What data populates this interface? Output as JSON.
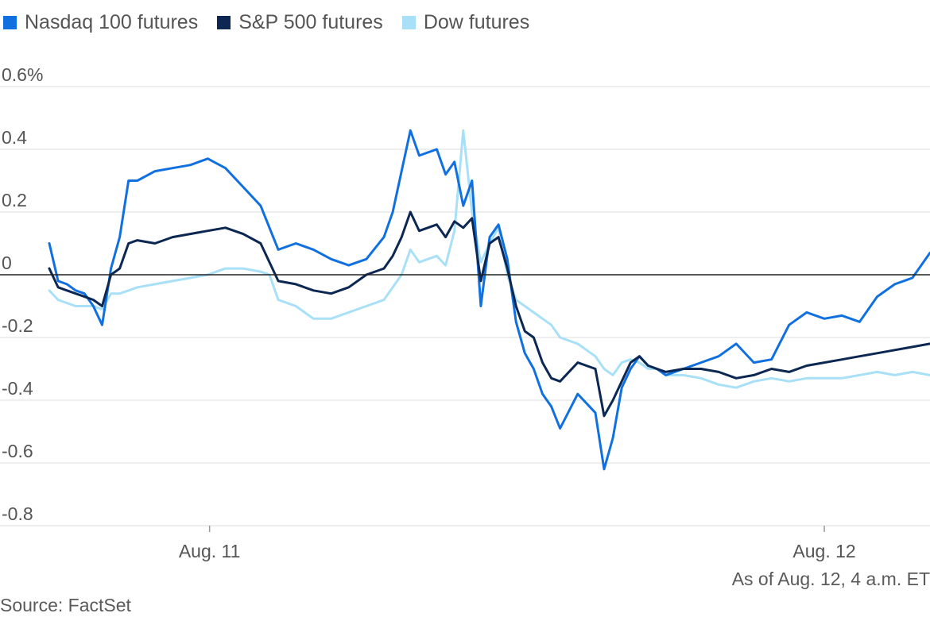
{
  "legend": [
    {
      "label": "Nasdaq 100 futures",
      "color": "#1170e0"
    },
    {
      "label": "S&P 500 futures",
      "color": "#0b2752"
    },
    {
      "label": "Dow futures",
      "color": "#a8e0f7"
    }
  ],
  "note": "As of Aug. 12, 4 a.m. ET",
  "source": "Source: FactSet",
  "chart_data": {
    "type": "line",
    "title": "",
    "xlabel": "",
    "ylabel": "",
    "ylim": [
      -0.8,
      0.6
    ],
    "y_ticks": [
      0.6,
      0.4,
      0.2,
      0,
      -0.2,
      -0.4,
      -0.6,
      -0.8
    ],
    "y_tick_labels": [
      "0.6%",
      "0.4",
      "0.2",
      "0",
      "-0.2",
      "-0.4",
      "-0.6",
      "-0.8"
    ],
    "x_ticks": [
      {
        "x": 0.182,
        "label": "Aug. 11"
      },
      {
        "x": 0.88,
        "label": "Aug. 12"
      }
    ],
    "zero_line": true,
    "grid": true,
    "x": [
      0.0,
      0.01,
      0.02,
      0.03,
      0.04,
      0.05,
      0.06,
      0.07,
      0.08,
      0.09,
      0.1,
      0.12,
      0.14,
      0.16,
      0.18,
      0.2,
      0.22,
      0.24,
      0.25,
      0.26,
      0.28,
      0.3,
      0.32,
      0.34,
      0.36,
      0.38,
      0.39,
      0.4,
      0.41,
      0.42,
      0.44,
      0.45,
      0.46,
      0.47,
      0.48,
      0.49,
      0.5,
      0.51,
      0.52,
      0.53,
      0.54,
      0.55,
      0.56,
      0.57,
      0.58,
      0.6,
      0.62,
      0.63,
      0.64,
      0.65,
      0.66,
      0.67,
      0.68,
      0.69,
      0.7,
      0.72,
      0.74,
      0.76,
      0.78,
      0.8,
      0.82,
      0.84,
      0.86,
      0.88,
      0.9,
      0.92,
      0.94,
      0.96,
      0.98,
      1.0
    ],
    "series": [
      {
        "name": "Nasdaq 100 futures",
        "color": "#1170e0",
        "values": [
          0.1,
          -0.02,
          -0.03,
          -0.05,
          -0.06,
          -0.1,
          -0.16,
          0.02,
          0.12,
          0.3,
          0.3,
          0.33,
          0.34,
          0.35,
          0.37,
          0.34,
          0.28,
          0.22,
          0.15,
          0.08,
          0.1,
          0.08,
          0.05,
          0.03,
          0.05,
          0.12,
          0.2,
          0.33,
          0.46,
          0.38,
          0.4,
          0.32,
          0.36,
          0.22,
          0.3,
          -0.1,
          0.12,
          0.16,
          0.05,
          -0.15,
          -0.25,
          -0.3,
          -0.38,
          -0.42,
          -0.49,
          -0.38,
          -0.44,
          -0.62,
          -0.52,
          -0.36,
          -0.3,
          -0.26,
          -0.29,
          -0.3,
          -0.32,
          -0.3,
          -0.28,
          -0.26,
          -0.22,
          -0.28,
          -0.27,
          -0.16,
          -0.12,
          -0.14,
          -0.13,
          -0.15,
          -0.07,
          -0.03,
          -0.01,
          0.07
        ]
      },
      {
        "name": "S&P 500 futures",
        "color": "#0b2752",
        "values": [
          0.02,
          -0.04,
          -0.05,
          -0.06,
          -0.07,
          -0.08,
          -0.1,
          0.0,
          0.02,
          0.1,
          0.11,
          0.1,
          0.12,
          0.13,
          0.14,
          0.15,
          0.13,
          0.1,
          0.04,
          -0.02,
          -0.03,
          -0.05,
          -0.06,
          -0.04,
          0.0,
          0.02,
          0.06,
          0.12,
          0.2,
          0.14,
          0.16,
          0.12,
          0.17,
          0.15,
          0.18,
          -0.02,
          0.1,
          0.12,
          0.02,
          -0.1,
          -0.18,
          -0.2,
          -0.28,
          -0.33,
          -0.34,
          -0.28,
          -0.3,
          -0.45,
          -0.4,
          -0.34,
          -0.28,
          -0.26,
          -0.29,
          -0.3,
          -0.31,
          -0.3,
          -0.3,
          -0.31,
          -0.33,
          -0.32,
          -0.3,
          -0.31,
          -0.29,
          -0.28,
          -0.27,
          -0.26,
          -0.25,
          -0.24,
          -0.23,
          -0.22
        ]
      },
      {
        "name": "Dow futures",
        "color": "#a8e0f7",
        "values": [
          -0.05,
          -0.08,
          -0.09,
          -0.1,
          -0.1,
          -0.1,
          -0.11,
          -0.06,
          -0.06,
          -0.05,
          -0.04,
          -0.03,
          -0.02,
          -0.01,
          0.0,
          0.02,
          0.02,
          0.01,
          0.0,
          -0.08,
          -0.1,
          -0.14,
          -0.14,
          -0.12,
          -0.1,
          -0.08,
          -0.04,
          0.0,
          0.08,
          0.04,
          0.06,
          0.03,
          0.14,
          0.46,
          0.2,
          0.04,
          0.1,
          0.15,
          0.0,
          -0.08,
          -0.1,
          -0.12,
          -0.14,
          -0.16,
          -0.2,
          -0.22,
          -0.26,
          -0.3,
          -0.32,
          -0.28,
          -0.27,
          -0.28,
          -0.3,
          -0.3,
          -0.32,
          -0.32,
          -0.33,
          -0.35,
          -0.36,
          -0.34,
          -0.33,
          -0.34,
          -0.33,
          -0.33,
          -0.33,
          -0.32,
          -0.31,
          -0.32,
          -0.31,
          -0.32
        ]
      }
    ]
  }
}
